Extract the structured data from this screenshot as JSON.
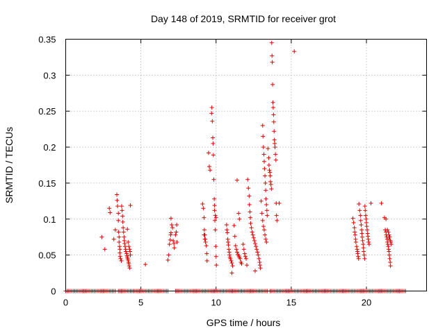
{
  "chart_data": {
    "type": "scatter",
    "title": "Day 148 of 2019, SRMTID for receiver grot",
    "xlabel": "GPS time / hours",
    "ylabel": "SRMTID / TECUs",
    "xlim": [
      0,
      24
    ],
    "ylim": [
      0,
      0.35
    ],
    "x_ticks": [
      0,
      5,
      10,
      15,
      20
    ],
    "y_ticks": [
      0,
      0.05,
      0.1,
      0.15,
      0.2,
      0.25,
      0.3,
      0.35
    ],
    "x_tick_labels": [
      "0",
      "5",
      "10",
      "15",
      "20"
    ],
    "y_tick_labels": [
      "0",
      "0.05",
      "0.1",
      "0.15",
      "0.2",
      "0.25",
      "0.3",
      "0.35"
    ],
    "grid": true,
    "marker": "+",
    "color": "#e00000",
    "zero_band": [
      [
        0.0,
        3.3
      ],
      [
        3.5,
        4.6
      ],
      [
        4.5,
        6.8
      ],
      [
        7.3,
        9.5
      ],
      [
        9.6,
        13.4
      ],
      [
        13.6,
        18.9
      ],
      [
        19.0,
        22.6
      ]
    ],
    "series": [
      {
        "name": "SRMTID",
        "points": [
          [
            2.4,
            0.075
          ],
          [
            2.6,
            0.058
          ],
          [
            2.9,
            0.115
          ],
          [
            2.95,
            0.109
          ],
          [
            3.2,
            0.072
          ],
          [
            3.3,
            0.085
          ],
          [
            3.4,
            0.134
          ],
          [
            3.42,
            0.126
          ],
          [
            3.45,
            0.118
          ],
          [
            3.5,
            0.108
          ],
          [
            3.5,
            0.098
          ],
          [
            3.52,
            0.082
          ],
          [
            3.55,
            0.075
          ],
          [
            3.55,
            0.068
          ],
          [
            3.58,
            0.062
          ],
          [
            3.6,
            0.058
          ],
          [
            3.6,
            0.053
          ],
          [
            3.62,
            0.048
          ],
          [
            3.65,
            0.045
          ],
          [
            3.7,
            0.042
          ],
          [
            3.72,
            0.118
          ],
          [
            3.75,
            0.112
          ],
          [
            3.78,
            0.104
          ],
          [
            3.8,
            0.096
          ],
          [
            3.82,
            0.088
          ],
          [
            3.85,
            0.082
          ],
          [
            3.88,
            0.075
          ],
          [
            3.9,
            0.07
          ],
          [
            3.92,
            0.066
          ],
          [
            3.95,
            0.062
          ],
          [
            3.98,
            0.058
          ],
          [
            4.0,
            0.055
          ],
          [
            4.05,
            0.052
          ],
          [
            4.08,
            0.049
          ],
          [
            4.1,
            0.047
          ],
          [
            4.12,
            0.045
          ],
          [
            4.15,
            0.043
          ],
          [
            4.18,
            0.04
          ],
          [
            4.2,
            0.038
          ],
          [
            4.22,
            0.035
          ],
          [
            4.25,
            0.032
          ],
          [
            4.1,
            0.086
          ],
          [
            4.15,
            0.068
          ],
          [
            4.2,
            0.062
          ],
          [
            4.25,
            0.058
          ],
          [
            4.28,
            0.055
          ],
          [
            4.3,
            0.05
          ],
          [
            4.3,
            0.119
          ],
          [
            5.3,
            0.037
          ],
          [
            6.8,
            0.043
          ],
          [
            6.85,
            0.05
          ],
          [
            6.9,
            0.065
          ],
          [
            6.95,
            0.071
          ],
          [
            6.98,
            0.078
          ],
          [
            7.0,
            0.081
          ],
          [
            7.0,
            0.101
          ],
          [
            7.05,
            0.092
          ],
          [
            7.1,
            0.088
          ],
          [
            7.15,
            0.07
          ],
          [
            7.2,
            0.066
          ],
          [
            7.22,
            0.06
          ],
          [
            7.3,
            0.078
          ],
          [
            7.35,
            0.082
          ],
          [
            7.38,
            0.092
          ],
          [
            7.4,
            0.068
          ],
          [
            9.1,
            0.121
          ],
          [
            9.15,
            0.115
          ],
          [
            9.2,
            0.102
          ],
          [
            9.22,
            0.085
          ],
          [
            9.25,
            0.078
          ],
          [
            9.28,
            0.072
          ],
          [
            9.3,
            0.068
          ],
          [
            9.35,
            0.063
          ],
          [
            9.38,
            0.052
          ],
          [
            9.4,
            0.042
          ],
          [
            9.2,
            0.078
          ],
          [
            9.25,
            0.072
          ],
          [
            9.5,
            0.192
          ],
          [
            9.55,
            0.173
          ],
          [
            9.6,
            0.168
          ],
          [
            9.7,
            0.247
          ],
          [
            9.72,
            0.255
          ],
          [
            9.75,
            0.236
          ],
          [
            9.78,
            0.213
          ],
          [
            9.8,
            0.205
          ],
          [
            9.82,
            0.189
          ],
          [
            9.85,
            0.155
          ],
          [
            9.88,
            0.128
          ],
          [
            9.9,
            0.112
          ],
          [
            9.92,
            0.098
          ],
          [
            9.95,
            0.085
          ],
          [
            9.98,
            0.062
          ],
          [
            10.0,
            0.048
          ],
          [
            10.02,
            0.036
          ],
          [
            9.9,
            0.119
          ],
          [
            9.95,
            0.105
          ],
          [
            10.0,
            0.102
          ],
          [
            10.7,
            0.092
          ],
          [
            10.72,
            0.085
          ],
          [
            10.75,
            0.081
          ],
          [
            10.78,
            0.072
          ],
          [
            10.8,
            0.068
          ],
          [
            10.82,
            0.064
          ],
          [
            10.85,
            0.058
          ],
          [
            10.88,
            0.054
          ],
          [
            10.9,
            0.05
          ],
          [
            10.92,
            0.047
          ],
          [
            10.95,
            0.045
          ],
          [
            11.0,
            0.042
          ],
          [
            11.05,
            0.039
          ],
          [
            11.1,
            0.035
          ],
          [
            11.05,
            0.025
          ],
          [
            11.2,
            0.091
          ],
          [
            11.25,
            0.076
          ],
          [
            11.3,
            0.063
          ],
          [
            11.35,
            0.058
          ],
          [
            11.4,
            0.054
          ],
          [
            11.45,
            0.051
          ],
          [
            11.5,
            0.049
          ],
          [
            11.55,
            0.047
          ],
          [
            11.6,
            0.045
          ],
          [
            11.65,
            0.04
          ],
          [
            11.7,
            0.038
          ],
          [
            11.4,
            0.154
          ],
          [
            11.5,
            0.108
          ],
          [
            11.55,
            0.1
          ],
          [
            11.8,
            0.065
          ],
          [
            11.85,
            0.058
          ],
          [
            11.9,
            0.052
          ],
          [
            11.95,
            0.048
          ],
          [
            12.0,
            0.045
          ],
          [
            12.05,
            0.036
          ],
          [
            12.1,
            0.155
          ],
          [
            12.15,
            0.143
          ],
          [
            12.2,
            0.132
          ],
          [
            12.22,
            0.12
          ],
          [
            12.25,
            0.11
          ],
          [
            12.28,
            0.102
          ],
          [
            12.3,
            0.094
          ],
          [
            12.35,
            0.088
          ],
          [
            12.4,
            0.082
          ],
          [
            12.45,
            0.078
          ],
          [
            12.5,
            0.074
          ],
          [
            12.55,
            0.07
          ],
          [
            12.6,
            0.066
          ],
          [
            12.65,
            0.062
          ],
          [
            12.7,
            0.058
          ],
          [
            12.75,
            0.054
          ],
          [
            12.8,
            0.05
          ],
          [
            12.85,
            0.045
          ],
          [
            12.9,
            0.04
          ],
          [
            12.92,
            0.036
          ],
          [
            12.95,
            0.032
          ],
          [
            12.6,
            0.028
          ],
          [
            13.0,
            0.125
          ],
          [
            13.05,
            0.108
          ],
          [
            13.1,
            0.098
          ],
          [
            13.15,
            0.09
          ],
          [
            13.2,
            0.085
          ],
          [
            13.25,
            0.078
          ],
          [
            13.3,
            0.072
          ],
          [
            13.35,
            0.068
          ],
          [
            13.1,
            0.23
          ],
          [
            13.12,
            0.215
          ],
          [
            13.15,
            0.2
          ],
          [
            13.18,
            0.19
          ],
          [
            13.2,
            0.18
          ],
          [
            13.22,
            0.17
          ],
          [
            13.25,
            0.16
          ],
          [
            13.28,
            0.15
          ],
          [
            13.3,
            0.14
          ],
          [
            13.32,
            0.128
          ],
          [
            13.35,
            0.12
          ],
          [
            13.38,
            0.112
          ],
          [
            13.4,
            0.105
          ],
          [
            13.45,
            0.198
          ],
          [
            13.5,
            0.185
          ],
          [
            13.52,
            0.175
          ],
          [
            13.55,
            0.168
          ],
          [
            13.58,
            0.165
          ],
          [
            13.6,
            0.16
          ],
          [
            13.62,
            0.152
          ],
          [
            13.65,
            0.148
          ],
          [
            13.68,
            0.142
          ],
          [
            13.7,
            0.345
          ],
          [
            13.72,
            0.327
          ],
          [
            13.74,
            0.318
          ],
          [
            13.76,
            0.287
          ],
          [
            13.78,
            0.262
          ],
          [
            13.8,
            0.255
          ],
          [
            13.82,
            0.245
          ],
          [
            13.84,
            0.235
          ],
          [
            13.86,
            0.222
          ],
          [
            13.88,
            0.21
          ],
          [
            13.9,
            0.205
          ],
          [
            13.92,
            0.2
          ],
          [
            13.95,
            0.19
          ],
          [
            13.98,
            0.182
          ],
          [
            14.0,
            0.122
          ],
          [
            14.02,
            0.105
          ],
          [
            14.05,
            0.098
          ],
          [
            14.2,
            0.122
          ],
          [
            15.2,
            0.333
          ],
          [
            19.1,
            0.101
          ],
          [
            19.15,
            0.095
          ],
          [
            19.2,
            0.088
          ],
          [
            19.22,
            0.082
          ],
          [
            19.25,
            0.078
          ],
          [
            19.28,
            0.072
          ],
          [
            19.3,
            0.068
          ],
          [
            19.35,
            0.062
          ],
          [
            19.38,
            0.058
          ],
          [
            19.4,
            0.055
          ],
          [
            19.42,
            0.052
          ],
          [
            19.45,
            0.048
          ],
          [
            19.48,
            0.045
          ],
          [
            19.5,
            0.121
          ],
          [
            19.55,
            0.112
          ],
          [
            19.6,
            0.105
          ],
          [
            19.62,
            0.098
          ],
          [
            19.65,
            0.092
          ],
          [
            19.68,
            0.085
          ],
          [
            19.7,
            0.08
          ],
          [
            19.72,
            0.075
          ],
          [
            19.75,
            0.07
          ],
          [
            19.78,
            0.065
          ],
          [
            19.8,
            0.06
          ],
          [
            19.82,
            0.055
          ],
          [
            19.85,
            0.05
          ],
          [
            19.88,
            0.045
          ],
          [
            19.9,
            0.118
          ],
          [
            19.92,
            0.112
          ],
          [
            19.95,
            0.105
          ],
          [
            19.98,
            0.1
          ],
          [
            20.0,
            0.095
          ],
          [
            20.02,
            0.09
          ],
          [
            20.05,
            0.085
          ],
          [
            20.08,
            0.08
          ],
          [
            20.1,
            0.076
          ],
          [
            20.12,
            0.072
          ],
          [
            20.15,
            0.068
          ],
          [
            20.18,
            0.065
          ],
          [
            20.3,
            0.122
          ],
          [
            21.0,
            0.122
          ],
          [
            21.2,
            0.102
          ],
          [
            21.25,
            0.085
          ],
          [
            21.3,
            0.082
          ],
          [
            21.32,
            0.078
          ],
          [
            21.35,
            0.075
          ],
          [
            21.38,
            0.072
          ],
          [
            21.4,
            0.068
          ],
          [
            21.42,
            0.065
          ],
          [
            21.45,
            0.062
          ],
          [
            21.48,
            0.058
          ],
          [
            21.5,
            0.055
          ],
          [
            21.52,
            0.05
          ],
          [
            21.55,
            0.045
          ],
          [
            21.58,
            0.04
          ],
          [
            21.6,
            0.035
          ],
          [
            21.4,
            0.085
          ],
          [
            21.45,
            0.082
          ],
          [
            21.5,
            0.078
          ],
          [
            21.55,
            0.075
          ],
          [
            21.6,
            0.07
          ],
          [
            21.62,
            0.068
          ],
          [
            21.65,
            0.065
          ],
          [
            21.3,
            0.1
          ],
          [
            21.5,
            0.072
          ]
        ]
      }
    ]
  }
}
